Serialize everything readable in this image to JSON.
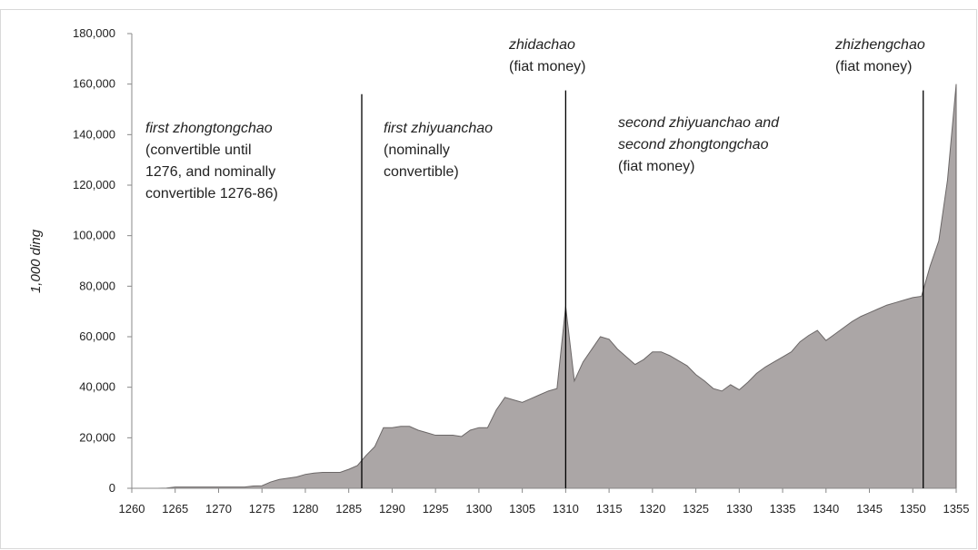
{
  "chart_data": {
    "type": "area",
    "y_label": "1,000 ding",
    "x": [
      1260,
      1261,
      1262,
      1263,
      1264,
      1265,
      1266,
      1267,
      1268,
      1269,
      1270,
      1271,
      1272,
      1273,
      1274,
      1275,
      1276,
      1277,
      1278,
      1279,
      1280,
      1281,
      1282,
      1283,
      1284,
      1285,
      1286,
      1287,
      1288,
      1289,
      1290,
      1291,
      1292,
      1293,
      1294,
      1295,
      1296,
      1297,
      1298,
      1299,
      1300,
      1301,
      1302,
      1303,
      1304,
      1305,
      1306,
      1307,
      1308,
      1309,
      1310,
      1311,
      1312,
      1313,
      1314,
      1315,
      1316,
      1317,
      1318,
      1319,
      1320,
      1321,
      1322,
      1323,
      1324,
      1325,
      1326,
      1327,
      1328,
      1329,
      1330,
      1331,
      1332,
      1333,
      1334,
      1335,
      1336,
      1337,
      1338,
      1339,
      1340,
      1341,
      1342,
      1343,
      1344,
      1345,
      1346,
      1347,
      1348,
      1349,
      1350,
      1351,
      1352,
      1353,
      1354,
      1355
    ],
    "values": [
      0,
      0,
      0,
      0,
      100,
      500,
      500,
      500,
      500,
      500,
      500,
      500,
      500,
      500,
      900,
      1000,
      2500,
      3500,
      4000,
      4500,
      5500,
      6000,
      6300,
      6300,
      6300,
      7500,
      9000,
      13000,
      16500,
      24000,
      24000,
      24500,
      24500,
      23000,
      22000,
      21000,
      21000,
      21000,
      20500,
      23000,
      24000,
      24000,
      31000,
      36000,
      35000,
      34000,
      35500,
      37000,
      38500,
      39500,
      72000,
      42500,
      50000,
      55000,
      60000,
      59000,
      55000,
      52000,
      49000,
      51000,
      54000,
      54000,
      52500,
      50500,
      48500,
      45000,
      42500,
      39500,
      38500,
      41000,
      39000,
      42000,
      45500,
      48000,
      50000,
      52000,
      54000,
      58000,
      60500,
      62500,
      58500,
      61000,
      63500,
      66000,
      68000,
      69500,
      71000,
      72500,
      73500,
      74500,
      75500,
      76000,
      88000,
      98000,
      122000,
      160000
    ],
    "color": "#aba6a6",
    "xlim": [
      1260,
      1355
    ],
    "xticks": [
      1260,
      1265,
      1270,
      1275,
      1280,
      1285,
      1290,
      1295,
      1300,
      1305,
      1310,
      1315,
      1320,
      1325,
      1330,
      1335,
      1340,
      1345,
      1350,
      1355
    ],
    "ylim": [
      0,
      180000
    ],
    "yticks": [
      0,
      {
        "value": 20000,
        "label": "20,000"
      },
      {
        "value": 40000,
        "label": "40,000"
      },
      {
        "value": 60000,
        "label": "60,000"
      },
      {
        "value": 80000,
        "label": "80,000"
      },
      {
        "value": 100000,
        "label": "100,000"
      },
      {
        "value": 120000,
        "label": "120,000"
      },
      {
        "value": 140000,
        "label": "140,000"
      },
      {
        "value": 160000,
        "label": "160,000"
      },
      {
        "value": 180000,
        "label": "180,000"
      }
    ],
    "markers": [
      {
        "x": 1286.5,
        "top": 156000
      },
      {
        "x": 1310,
        "top": 157500
      },
      {
        "x": 1351.2,
        "top": 157500
      }
    ],
    "annotations": [
      {
        "lines": [
          "first zhongtongchao",
          "(convertible until",
          "1276, and nominally",
          "convertible 1276-86)"
        ],
        "italic": [
          true,
          false,
          false,
          false
        ]
      },
      {
        "lines": [
          "first zhiyuanchao",
          "(nominally",
          "convertible)"
        ],
        "italic": [
          true,
          false,
          false
        ]
      },
      {
        "lines": [
          "zhidachao",
          "(fiat money)"
        ],
        "italic": [
          true,
          false
        ]
      },
      {
        "lines": [
          "second zhiyuanchao and",
          "second zhongtongchao",
          "(fiat money)"
        ],
        "italic": [
          true,
          true,
          false
        ]
      },
      {
        "lines": [
          "zhizhengchao",
          "(fiat money)"
        ],
        "italic": [
          true,
          false
        ]
      }
    ]
  }
}
